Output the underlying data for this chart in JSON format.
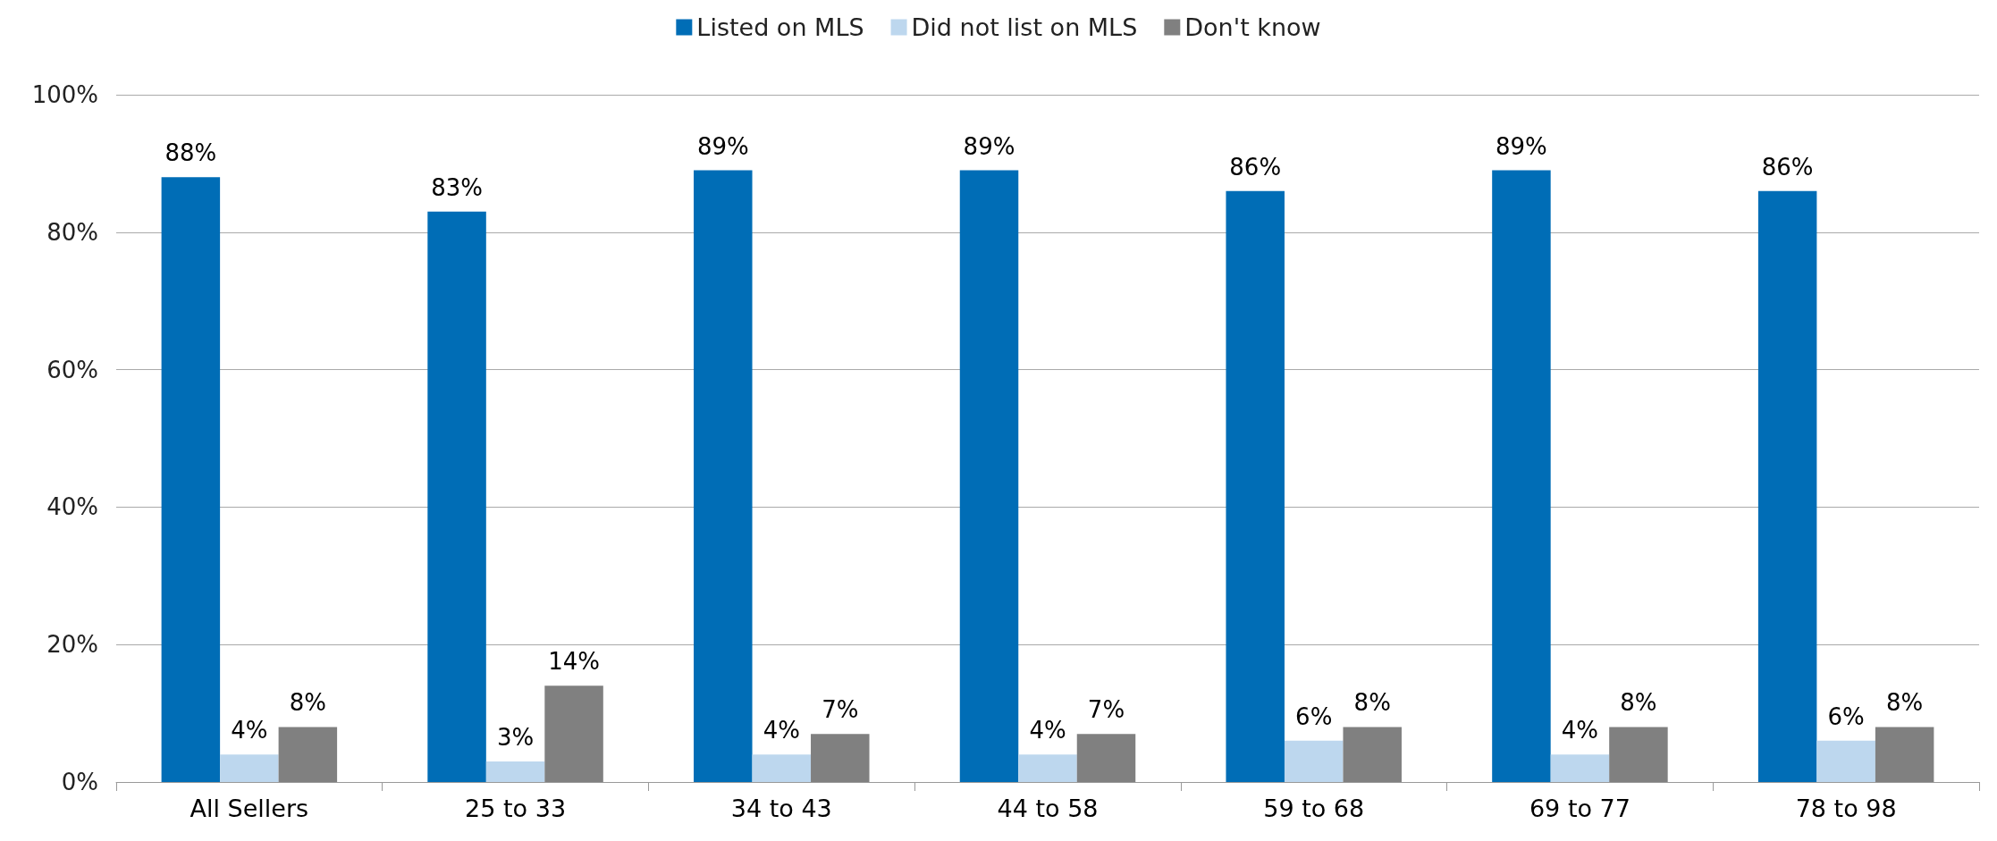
{
  "chart_data": {
    "type": "bar",
    "categories": [
      "All Sellers",
      "25 to 33",
      "34 to 43",
      "44 to 58",
      "59 to 68",
      "69 to 77",
      "78 to 98"
    ],
    "series": [
      {
        "name": "Listed on MLS",
        "color": "#006db6",
        "values": [
          88,
          83,
          89,
          89,
          86,
          89,
          86
        ],
        "value_labels": [
          "88%",
          "83%",
          "89%",
          "89%",
          "86%",
          "89%",
          "86%"
        ]
      },
      {
        "name": "Did not list on MLS",
        "color": "#bdd7ee",
        "values": [
          4,
          3,
          4,
          4,
          6,
          4,
          6
        ],
        "value_labels": [
          "4%",
          "3%",
          "4%",
          "4%",
          "6%",
          "4%",
          "6%"
        ]
      },
      {
        "name": "Don't know",
        "color": "#808080",
        "values": [
          8,
          14,
          7,
          7,
          8,
          8,
          8
        ],
        "value_labels": [
          "8%",
          "14%",
          "7%",
          "7%",
          "8%",
          "8%",
          "8%"
        ]
      }
    ],
    "ylim": [
      0,
      100
    ],
    "yticks": [
      {
        "value": 0,
        "label": "0%"
      },
      {
        "value": 20,
        "label": "20%"
      },
      {
        "value": 40,
        "label": "40%"
      },
      {
        "value": 60,
        "label": "60%"
      },
      {
        "value": 80,
        "label": "80%"
      },
      {
        "value": 100,
        "label": "100%"
      }
    ],
    "grid": "y",
    "legend": "top"
  }
}
